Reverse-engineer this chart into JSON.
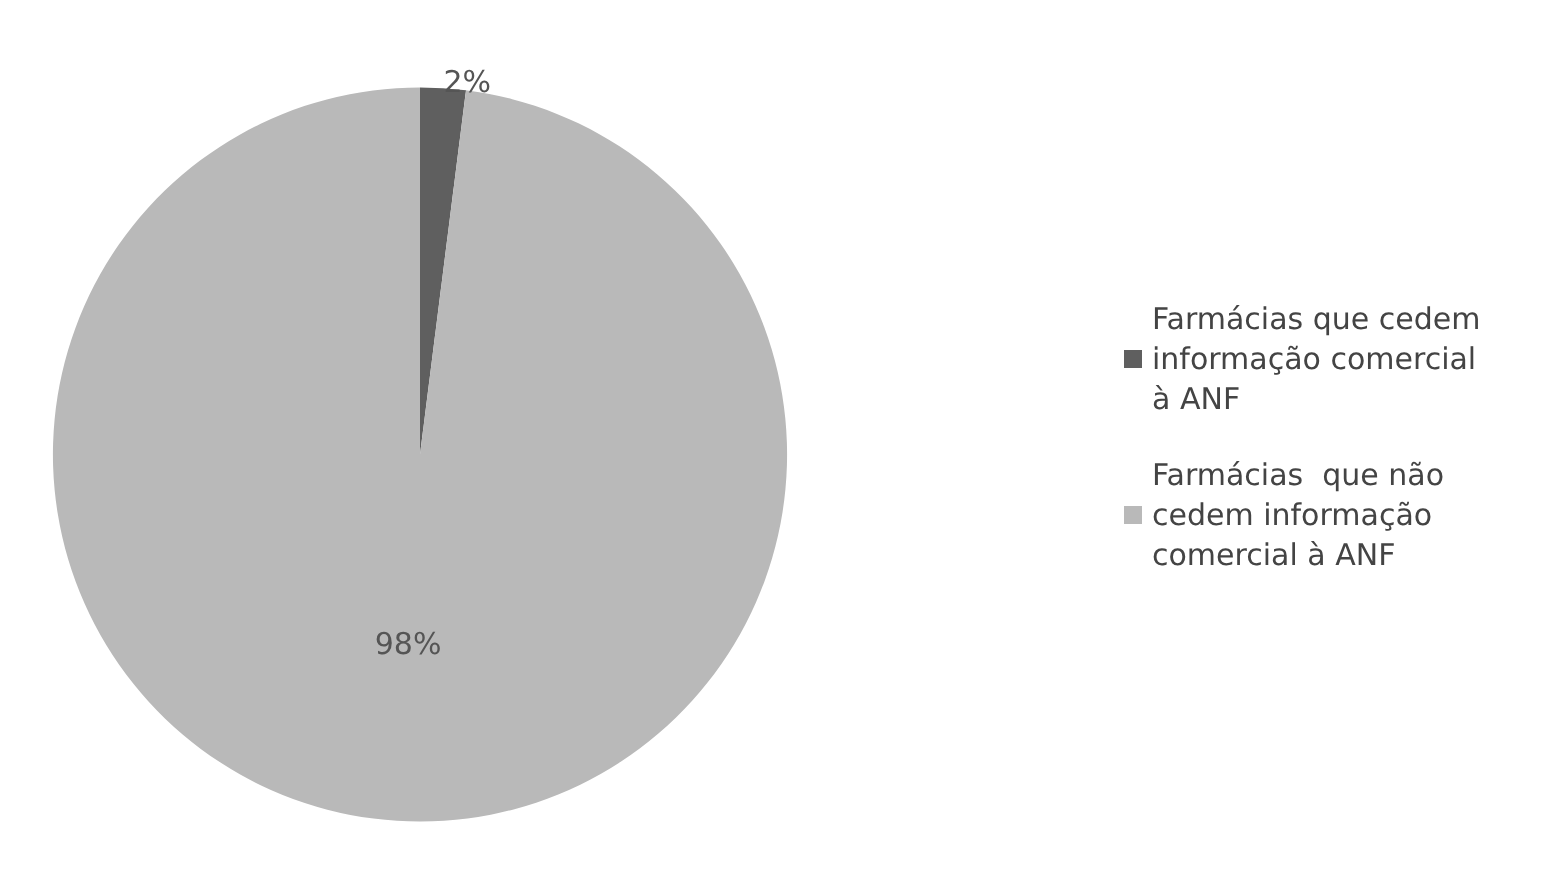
{
  "chart_data": {
    "type": "pie",
    "categories": [
      "Farmácias que cedem informação comercial à ANF",
      "Farmácias  que não cedem informação comercial à ANF"
    ],
    "values": [
      2,
      98
    ],
    "colors": [
      "#5f5f5f",
      "#b9b9b9"
    ],
    "value_labels": [
      "2%",
      "98%"
    ],
    "legend": "right"
  }
}
